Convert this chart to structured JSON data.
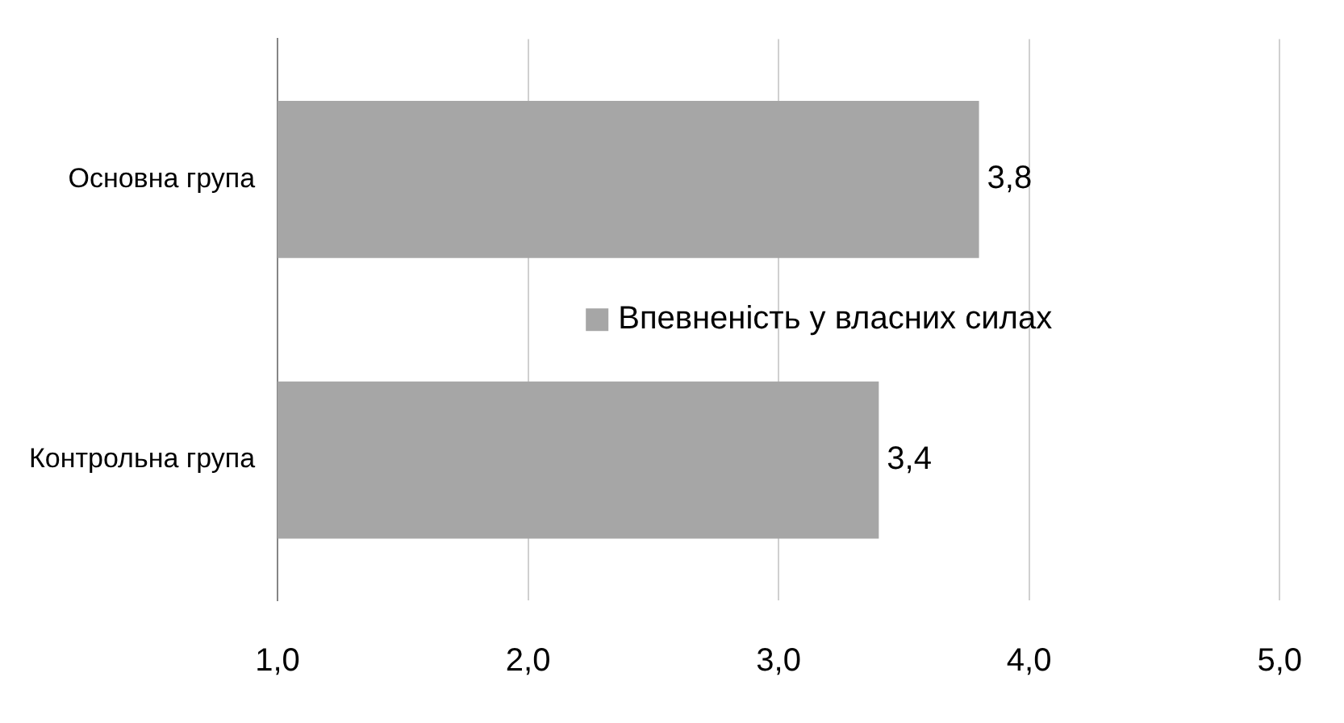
{
  "chart_data": {
    "type": "bar",
    "orientation": "horizontal",
    "categories": [
      "Основна група",
      "Контрольна група"
    ],
    "series": [
      {
        "name": "Впевненість у власних силах",
        "color": "#a6a6a6",
        "values": [
          3.8,
          3.4
        ],
        "value_labels": [
          "3,8",
          "3,4"
        ]
      }
    ],
    "xlim": [
      1,
      5
    ],
    "xticks": [
      {
        "value": 1,
        "label": "1,0"
      },
      {
        "value": 2,
        "label": "2,0"
      },
      {
        "value": 3,
        "label": "3,0"
      },
      {
        "value": 4,
        "label": "4,0"
      },
      {
        "value": 5,
        "label": "5,0"
      }
    ],
    "grid": "x",
    "legend": "right"
  }
}
